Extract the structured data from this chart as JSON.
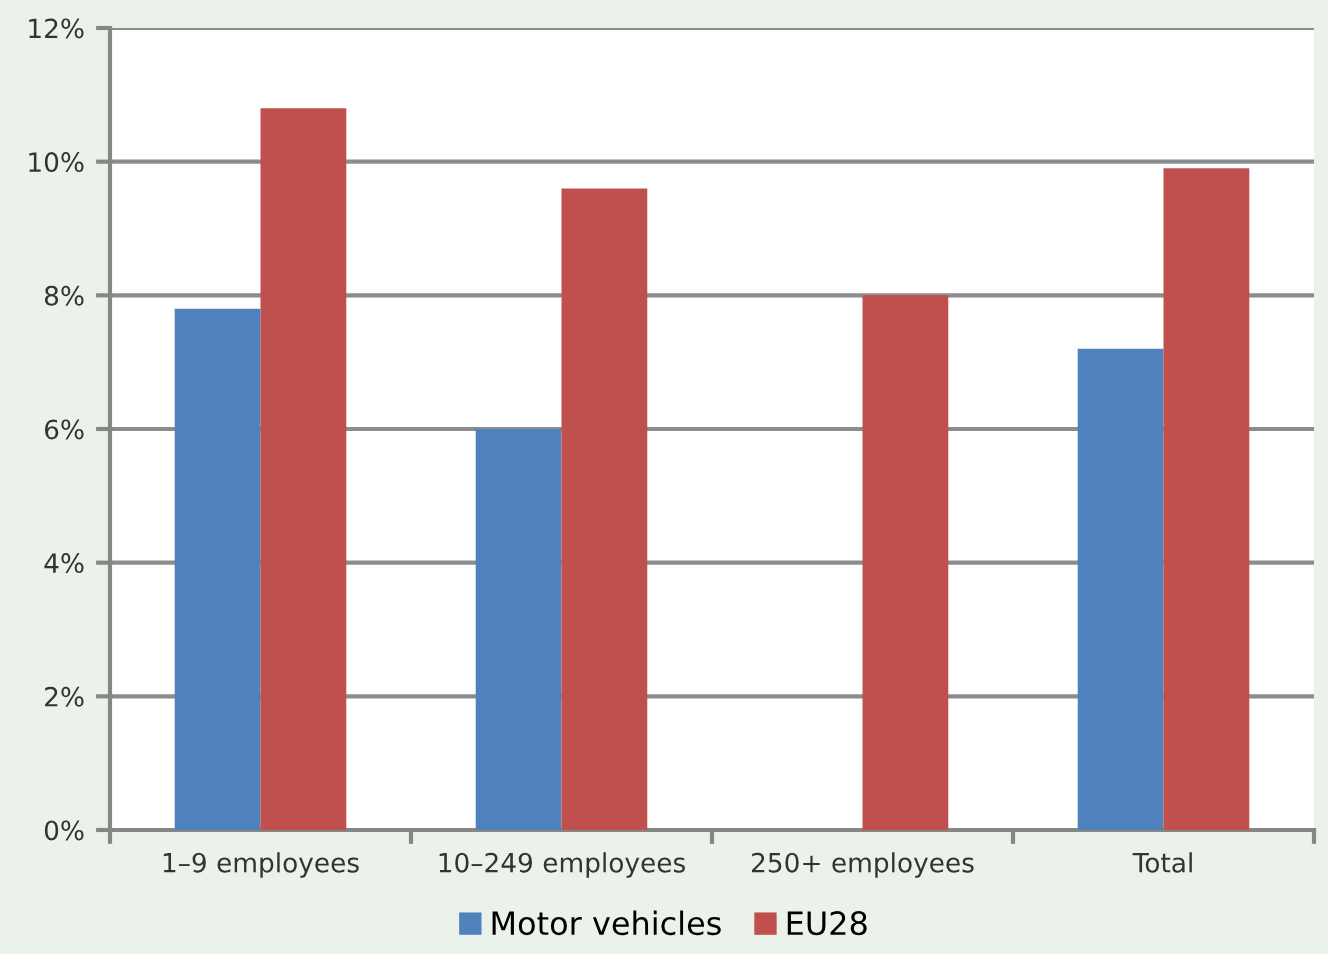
{
  "chart_data": {
    "type": "bar",
    "categories": [
      "1–9 employees",
      "10–249 employees",
      "250+ employees",
      "Total"
    ],
    "series": [
      {
        "name": "Motor vehicles",
        "color": "#4f81bd",
        "values": [
          7.8,
          6.0,
          null,
          7.2
        ]
      },
      {
        "name": "EU28",
        "color": "#c0504d",
        "values": [
          10.8,
          9.6,
          8.0,
          9.9
        ]
      }
    ],
    "ylim": [
      0,
      12
    ],
    "yticks": [
      {
        "value": 0,
        "label": "0%"
      },
      {
        "value": 2,
        "label": "2%"
      },
      {
        "value": 4,
        "label": "4%"
      },
      {
        "value": 6,
        "label": "6%"
      },
      {
        "value": 8,
        "label": "8%"
      },
      {
        "value": 10,
        "label": "10%"
      },
      {
        "value": 12,
        "label": "12%"
      }
    ],
    "grid": "y",
    "legend": "bottom"
  }
}
